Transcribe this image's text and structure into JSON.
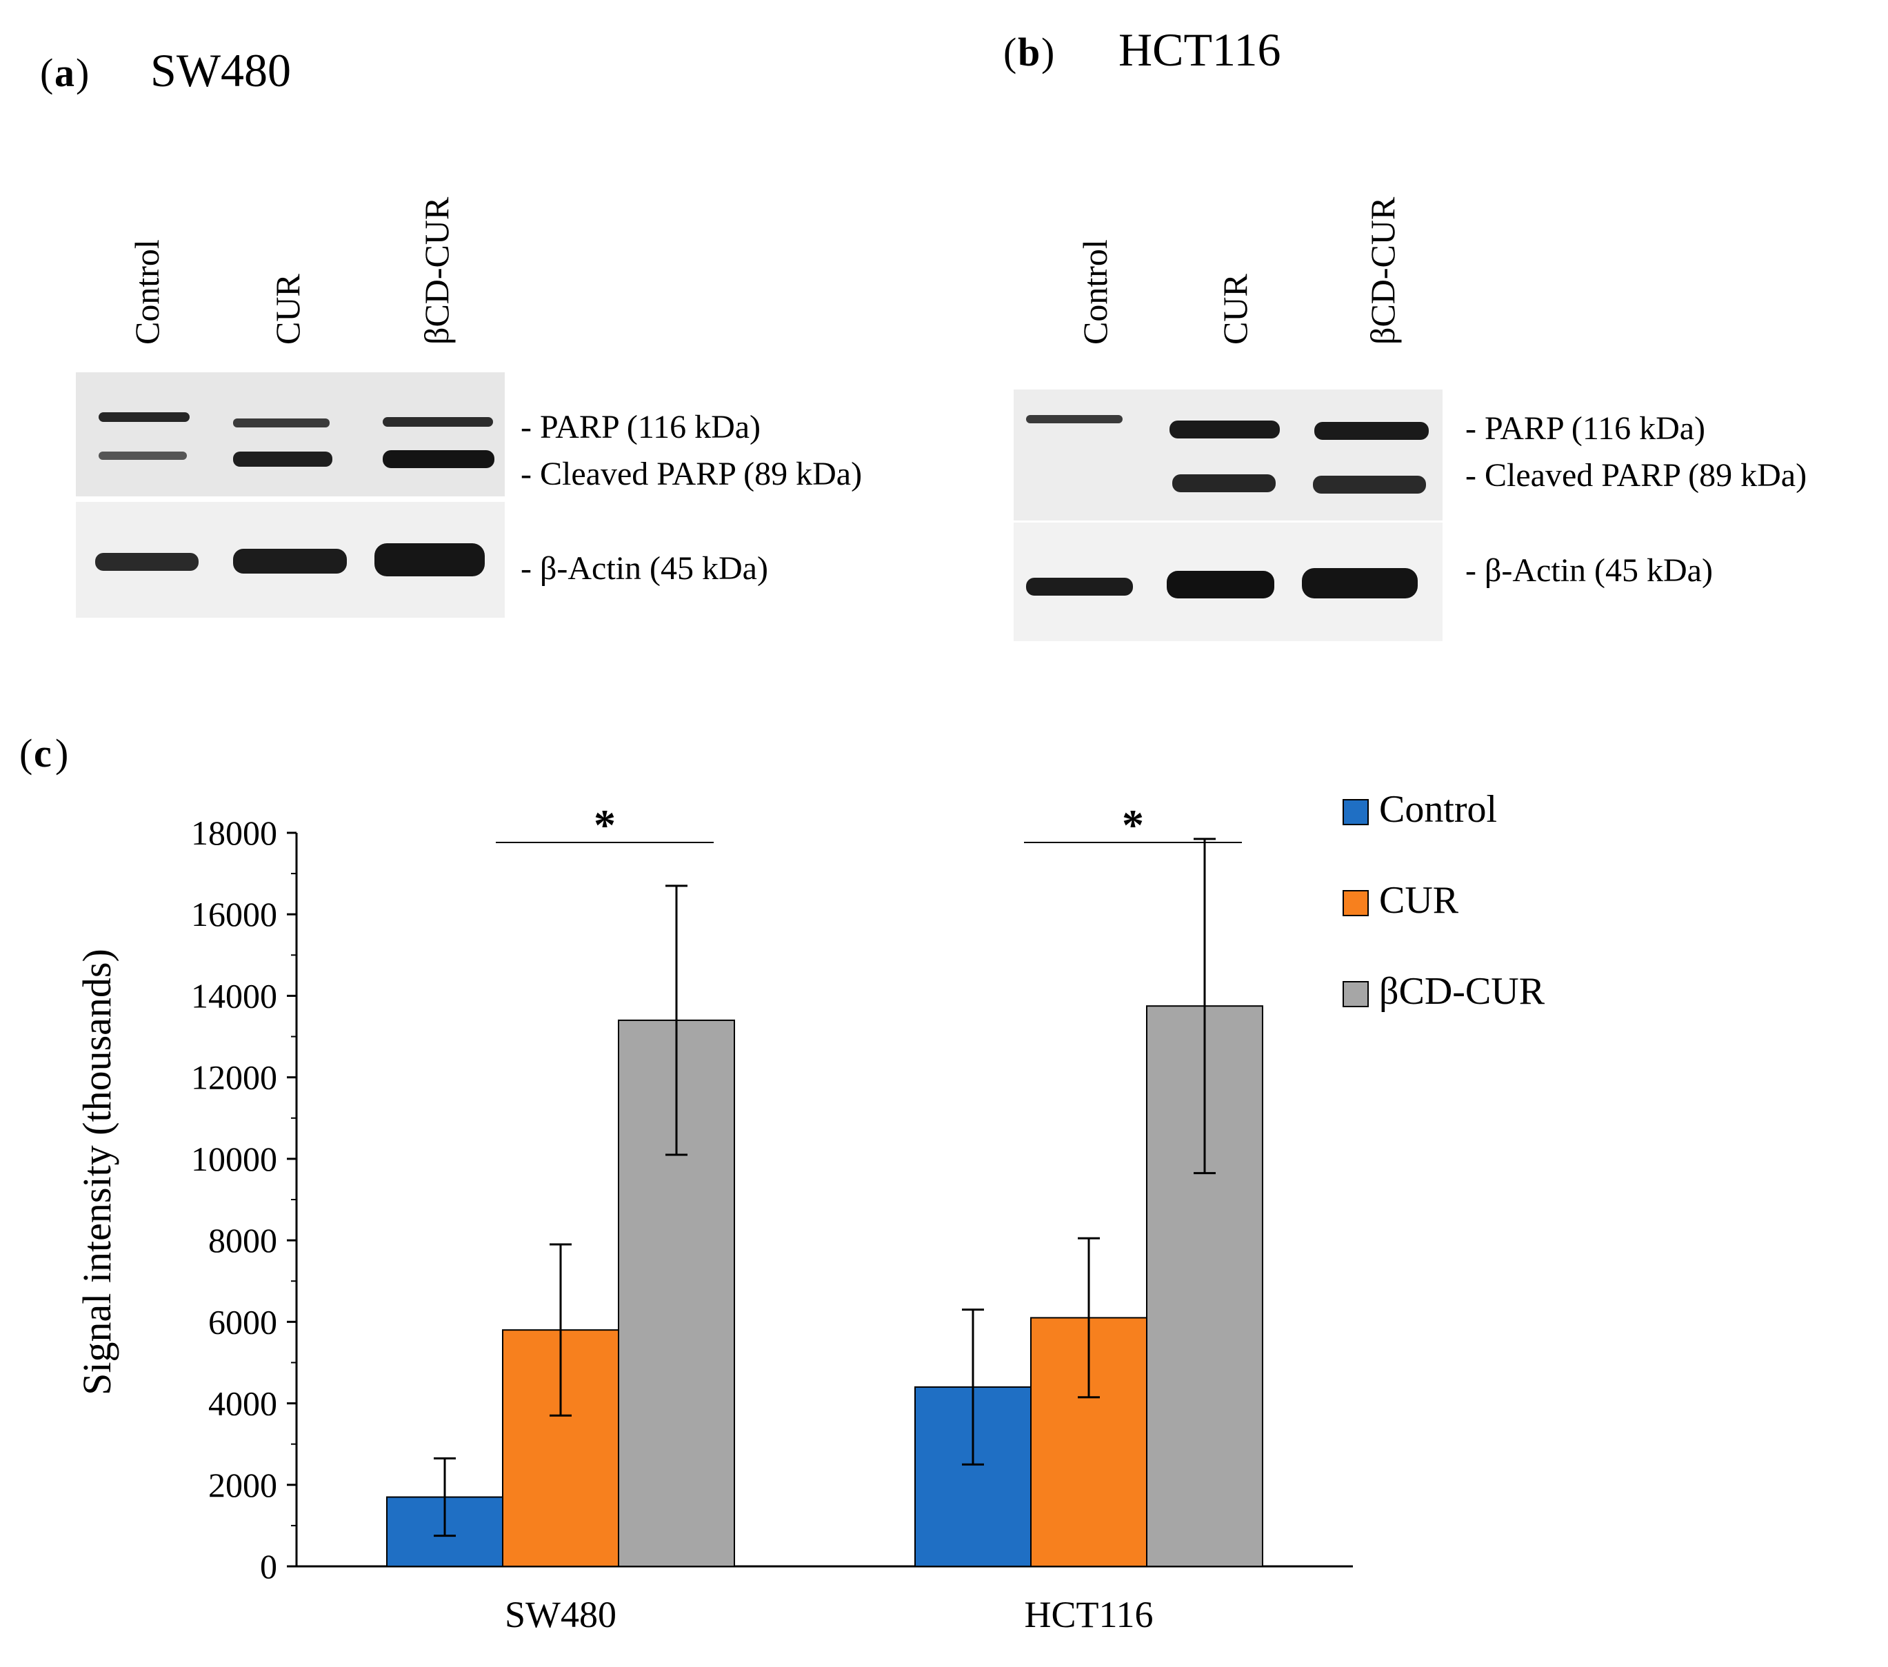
{
  "panel_a": {
    "letter": "a",
    "title": "SW480",
    "lanes": [
      "Control",
      "CUR",
      "βCD-CUR"
    ],
    "band_labels": [
      "- PARP (116 kDa)",
      "- Cleaved PARP (89 kDa)",
      "- β-Actin (45 kDa)"
    ]
  },
  "panel_b": {
    "letter": "b",
    "title": "HCT116",
    "lanes": [
      "Control",
      "CUR",
      "βCD-CUR"
    ],
    "band_labels": [
      "- PARP (116 kDa)",
      "- Cleaved PARP (89 kDa)",
      "- β-Actin (45 kDa)"
    ]
  },
  "panel_c": {
    "letter": "c"
  },
  "chart_data": {
    "type": "bar",
    "title": "",
    "xlabel": "",
    "ylabel": "Signal intensity (thousands)",
    "ylim": [
      0,
      18000
    ],
    "yticks": [
      0,
      2000,
      4000,
      6000,
      8000,
      10000,
      12000,
      14000,
      16000,
      18000
    ],
    "categories": [
      "SW480",
      "HCT116"
    ],
    "series": [
      {
        "name": "Control",
        "color": "#1f6fc4",
        "values": [
          1700,
          4400
        ],
        "errors": [
          950,
          1900
        ]
      },
      {
        "name": "CUR",
        "color": "#f7801e",
        "values": [
          5800,
          6100
        ],
        "errors": [
          2100,
          1950
        ]
      },
      {
        "name": "βCD-CUR",
        "color": "#a6a6a6",
        "values": [
          13400,
          13750
        ],
        "errors": [
          3300,
          4100
        ]
      }
    ],
    "significance": [
      {
        "category": "SW480",
        "label": "*"
      },
      {
        "category": "HCT116",
        "label": "*"
      }
    ],
    "legend_position": "top-right"
  }
}
